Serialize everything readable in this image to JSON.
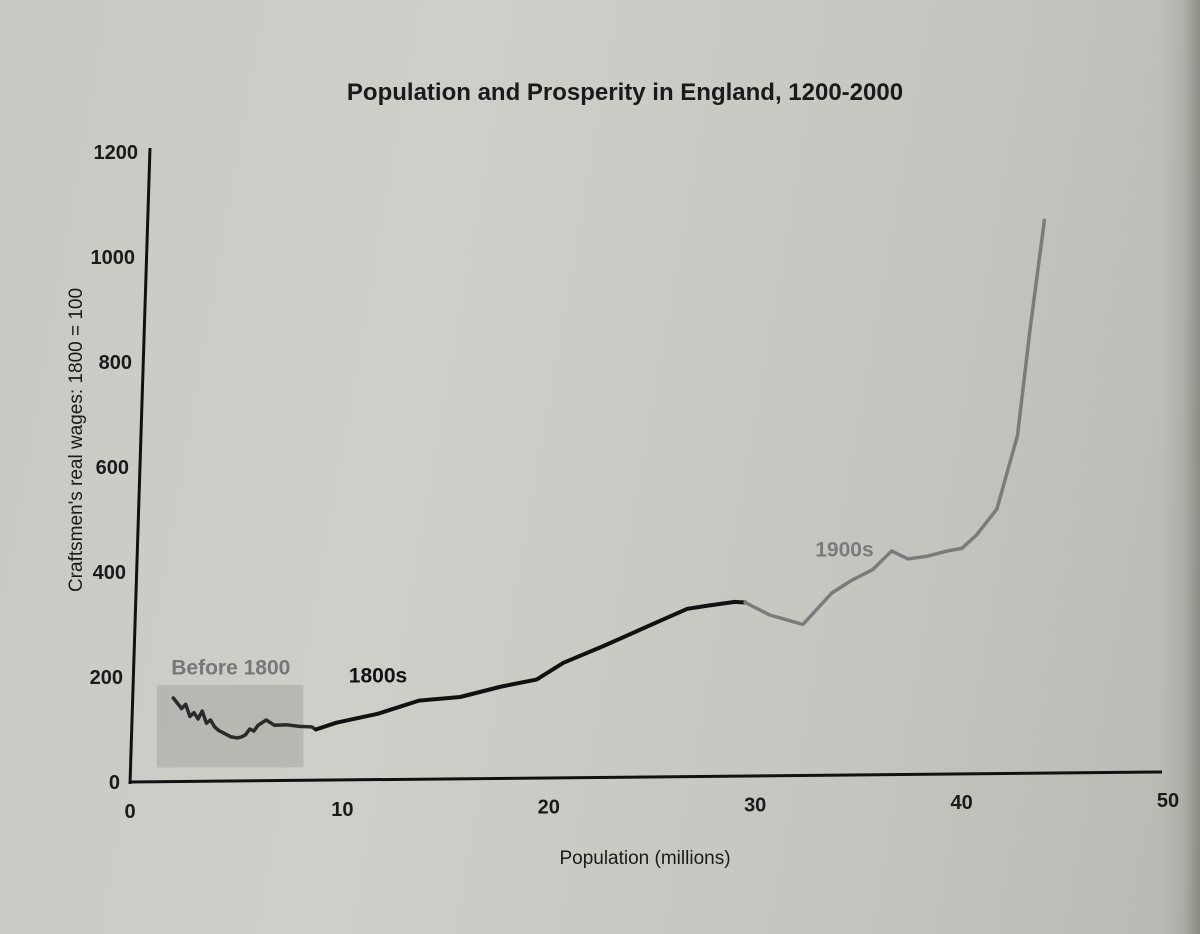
{
  "chart_data": {
    "type": "line",
    "title": "Population and Prosperity in England, 1200-2000",
    "xlabel": "Population (millions)",
    "ylabel": "Craftsmen's real wages: 1800 = 100",
    "xlim": [
      0,
      50
    ],
    "ylim": [
      0,
      1200
    ],
    "x_ticks": [
      "0",
      "10",
      "20",
      "30",
      "40",
      "50"
    ],
    "y_ticks": [
      "0",
      "200",
      "400",
      "600",
      "800",
      "1000",
      "1200"
    ],
    "grid": false,
    "series": [
      {
        "name": "Before 1800",
        "color": "#2a2a2a",
        "points": [
          [
            2.1,
            160
          ],
          [
            2.3,
            150
          ],
          [
            2.5,
            140
          ],
          [
            2.7,
            148
          ],
          [
            2.9,
            125
          ],
          [
            3.1,
            132
          ],
          [
            3.3,
            120
          ],
          [
            3.5,
            135
          ],
          [
            3.7,
            112
          ],
          [
            3.9,
            118
          ],
          [
            4.1,
            105
          ],
          [
            4.3,
            98
          ],
          [
            4.6,
            92
          ],
          [
            4.9,
            86
          ],
          [
            5.2,
            84
          ],
          [
            5.4,
            86
          ],
          [
            5.6,
            90
          ],
          [
            5.8,
            101
          ],
          [
            6.0,
            97
          ],
          [
            6.2,
            108
          ],
          [
            6.6,
            118
          ],
          [
            7.0,
            108
          ],
          [
            7.6,
            109
          ],
          [
            8.2,
            106
          ],
          [
            8.8,
            105
          ],
          [
            9.0,
            100
          ]
        ],
        "region": {
          "x": [
            1.3,
            8.4
          ],
          "y": [
            28,
            185
          ]
        }
      },
      {
        "name": "1800s",
        "color": "#111111",
        "points": [
          [
            9,
            100
          ],
          [
            10,
            113
          ],
          [
            12,
            130
          ],
          [
            14,
            155
          ],
          [
            16,
            162
          ],
          [
            18,
            182
          ],
          [
            19.7,
            195
          ],
          [
            21,
            227
          ],
          [
            23,
            260
          ],
          [
            25,
            295
          ],
          [
            27,
            330
          ],
          [
            28,
            336
          ],
          [
            29.3,
            343
          ],
          [
            29.8,
            342
          ]
        ]
      },
      {
        "name": "1900s",
        "color": "#7b7b7b",
        "points": [
          [
            29.8,
            342
          ],
          [
            31,
            318
          ],
          [
            32.6,
            300
          ],
          [
            34,
            360
          ],
          [
            35,
            385
          ],
          [
            36,
            405
          ],
          [
            36.9,
            440
          ],
          [
            37.7,
            425
          ],
          [
            38.6,
            430
          ],
          [
            39.6,
            440
          ],
          [
            40.3,
            445
          ],
          [
            41,
            470
          ],
          [
            42,
            520
          ],
          [
            43,
            660
          ],
          [
            43.6,
            860
          ],
          [
            44.3,
            1070
          ]
        ]
      }
    ],
    "annotations": [
      {
        "text": "Before 1800",
        "x": 2.0,
        "y": 205,
        "color": "#777777"
      },
      {
        "text": "1800s",
        "x": 10.6,
        "y": 190,
        "color": "#111111"
      },
      {
        "text": "1900s",
        "x": 33.2,
        "y": 430,
        "color": "#7b7b7b"
      }
    ]
  }
}
